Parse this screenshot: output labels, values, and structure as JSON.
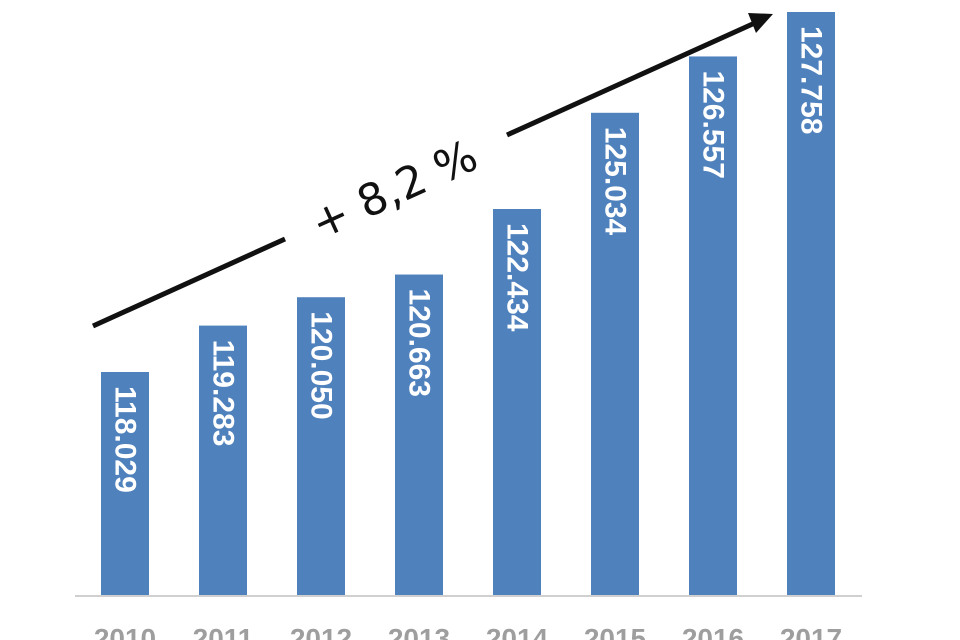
{
  "chart_data": {
    "type": "bar",
    "title": "",
    "xlabel": "",
    "ylabel": "",
    "categories": [
      "2010",
      "2011",
      "2012",
      "2013",
      "2014",
      "2015",
      "2016",
      "2017"
    ],
    "values": [
      118029,
      119283,
      120050,
      120663,
      122434,
      125034,
      126557,
      127758
    ],
    "value_labels": [
      "118.029",
      "119.283",
      "120.050",
      "120.663",
      "122.434",
      "125.034",
      "126.557",
      "127.758"
    ],
    "annotation": "+ 8,2 %",
    "grid": false,
    "legend": "none",
    "colors": {
      "bar": "#4f81bd",
      "bar_label": "#ffffff",
      "tick_label": "#9e9e9e",
      "arrow": "#111111",
      "axis": "#d0d0d0"
    }
  }
}
